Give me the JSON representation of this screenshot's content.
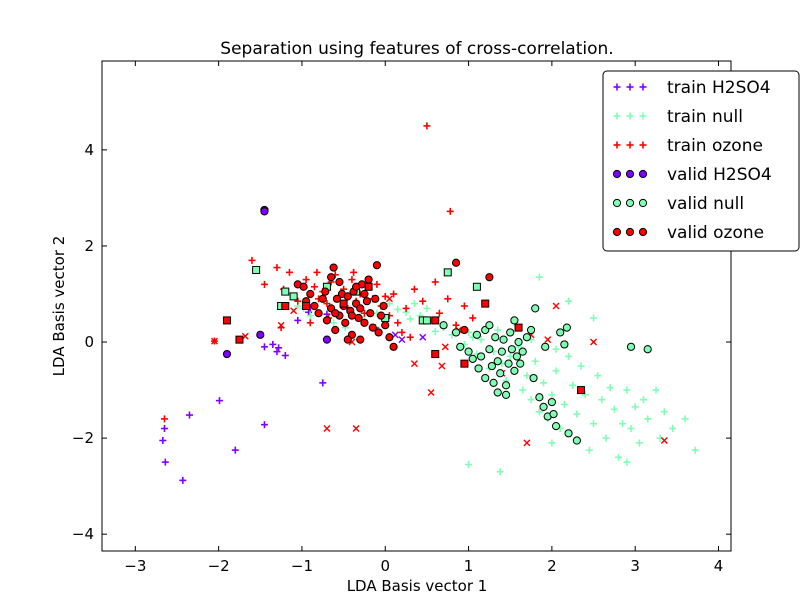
{
  "chart_data": {
    "type": "scatter",
    "title": "Separation using features of cross-correlation.",
    "xlabel": "LDA Basis vector 1",
    "ylabel": "LDA Basis vector 2",
    "xlim": [
      -3.4,
      4.15
    ],
    "ylim": [
      -4.35,
      5.85
    ],
    "xticks": [
      -3,
      -2,
      -1,
      0,
      1,
      2,
      3,
      4
    ],
    "xtick_labels": [
      "−3",
      "−2",
      "−1",
      "0",
      "1",
      "2",
      "3",
      "4"
    ],
    "yticks": [
      -4,
      -2,
      0,
      2,
      4
    ],
    "ytick_labels": [
      "−4",
      "−2",
      "0",
      "2",
      "4"
    ],
    "grid": false,
    "legend_position": "top-right",
    "legend": [
      "train H2SO4",
      "train null",
      "train ozone",
      "valid H2SO4",
      "valid null",
      "valid ozone"
    ],
    "series": [
      {
        "name": "train H2SO4",
        "marker": "+",
        "color": "#8000ff",
        "points": [
          [
            -2.65,
            -1.8
          ],
          [
            -2.67,
            -2.05
          ],
          [
            -2.64,
            -2.5
          ],
          [
            -2.43,
            -2.88
          ],
          [
            -2.35,
            -1.52
          ],
          [
            -1.99,
            -1.22
          ],
          [
            -1.8,
            -2.25
          ],
          [
            -1.45,
            -1.72
          ],
          [
            -1.2,
            -0.28
          ],
          [
            -1.3,
            -0.2
          ],
          [
            -1.28,
            -0.12
          ],
          [
            -1.35,
            -0.05
          ],
          [
            -1.45,
            -0.1
          ],
          [
            -0.75,
            -0.85
          ],
          [
            -1.05,
            0.45
          ],
          [
            -0.9,
            0.72
          ],
          [
            -0.92,
            0.62
          ],
          [
            -0.7,
            0.58
          ]
        ]
      },
      {
        "name": "train null",
        "marker": "+",
        "color": "#80ffb4",
        "points": [
          [
            -1.05,
            0.75
          ],
          [
            -0.98,
            0.7
          ],
          [
            -0.9,
            0.55
          ],
          [
            -0.62,
            0.4
          ],
          [
            -0.48,
            0.3
          ],
          [
            -0.3,
            0.52
          ],
          [
            -0.25,
            0.45
          ],
          [
            -0.1,
            0.6
          ],
          [
            0.05,
            0.8
          ],
          [
            0.15,
            0.68
          ],
          [
            0.25,
            0.62
          ],
          [
            0.3,
            0.48
          ],
          [
            0.42,
            0.55
          ],
          [
            0.55,
            0.45
          ],
          [
            0.6,
            0.22
          ],
          [
            0.7,
            0.3
          ],
          [
            0.8,
            0.15
          ],
          [
            0.85,
            0.35
          ],
          [
            0.95,
            -0.05
          ],
          [
            1.0,
            0.2
          ],
          [
            1.05,
            0.1
          ],
          [
            1.1,
            -0.25
          ],
          [
            1.15,
            0.05
          ],
          [
            1.25,
            -0.55
          ],
          [
            1.3,
            -0.2
          ],
          [
            1.35,
            0.25
          ],
          [
            1.4,
            -0.45
          ],
          [
            1.45,
            -0.8
          ],
          [
            1.5,
            -0.3
          ],
          [
            1.55,
            -0.6
          ],
          [
            1.6,
            -0.1
          ],
          [
            1.65,
            -1.0
          ],
          [
            1.7,
            -0.7
          ],
          [
            1.75,
            -1.2
          ],
          [
            1.8,
            -0.4
          ],
          [
            1.85,
            -1.45
          ],
          [
            1.9,
            -0.85
          ],
          [
            1.95,
            -1.6
          ],
          [
            2.0,
            -1.1
          ],
          [
            2.05,
            -0.6
          ],
          [
            2.1,
            -1.8
          ],
          [
            2.15,
            -1.3
          ],
          [
            2.2,
            -0.3
          ],
          [
            2.25,
            -0.9
          ],
          [
            2.3,
            -1.5
          ],
          [
            2.35,
            -0.5
          ],
          [
            2.4,
            -1.1
          ],
          [
            2.45,
            -2.25
          ],
          [
            2.5,
            -1.7
          ],
          [
            2.55,
            -0.7
          ],
          [
            2.6,
            -1.2
          ],
          [
            2.65,
            -2.0
          ],
          [
            2.7,
            -0.95
          ],
          [
            2.75,
            -1.4
          ],
          [
            2.8,
            -2.4
          ],
          [
            2.85,
            -1.7
          ],
          [
            2.9,
            -1.0
          ],
          [
            2.95,
            -1.8
          ],
          [
            3.0,
            -1.35
          ],
          [
            3.05,
            -2.1
          ],
          [
            3.1,
            -1.2
          ],
          [
            3.15,
            -1.6
          ],
          [
            3.25,
            -1.0
          ],
          [
            3.3,
            -2.0
          ],
          [
            3.35,
            -1.45
          ],
          [
            3.45,
            -1.8
          ],
          [
            3.6,
            -1.6
          ],
          [
            3.72,
            -2.25
          ],
          [
            1.0,
            -2.55
          ],
          [
            1.38,
            -2.7
          ],
          [
            1.85,
            1.35
          ],
          [
            2.2,
            0.85
          ],
          [
            2.5,
            0.5
          ],
          [
            2.9,
            -2.5
          ],
          [
            2.0,
            -2.1
          ],
          [
            1.55,
            0.4
          ],
          [
            1.75,
            0.05
          ],
          [
            2.05,
            -0.15
          ],
          [
            0.5,
            0.7
          ],
          [
            0.35,
            0.8
          ]
        ]
      },
      {
        "name": "train ozone",
        "marker": "+",
        "color": "#ff0000",
        "points": [
          [
            -2.65,
            -1.6
          ],
          [
            -2.05,
            0.02
          ],
          [
            -1.6,
            1.7
          ],
          [
            -1.45,
            1.2
          ],
          [
            -1.3,
            1.55
          ],
          [
            -1.15,
            1.45
          ],
          [
            -1.22,
            1.1
          ],
          [
            -1.1,
            0.95
          ],
          [
            -1.05,
            0.85
          ],
          [
            -0.95,
            1.3
          ],
          [
            -0.85,
            1.15
          ],
          [
            -0.8,
            0.9
          ],
          [
            -0.75,
            1.05
          ],
          [
            -0.7,
            0.8
          ],
          [
            -0.65,
            1.25
          ],
          [
            -0.6,
            1.4
          ],
          [
            -0.55,
            0.95
          ],
          [
            -0.5,
            1.1
          ],
          [
            -0.45,
            0.7
          ],
          [
            -0.4,
            1.3
          ],
          [
            -0.35,
            0.85
          ],
          [
            -0.3,
            1.0
          ],
          [
            -0.25,
            0.6
          ],
          [
            -0.2,
            1.15
          ],
          [
            -0.15,
            0.9
          ],
          [
            -0.1,
            1.2
          ],
          [
            -0.05,
            0.75
          ],
          [
            0.0,
            0.95
          ],
          [
            0.05,
            0.55
          ],
          [
            0.1,
            1.0
          ],
          [
            0.15,
            0.4
          ],
          [
            0.2,
            0.2
          ],
          [
            0.3,
            0.1
          ],
          [
            0.35,
            1.1
          ],
          [
            0.45,
            0.85
          ],
          [
            0.5,
            4.5
          ],
          [
            0.78,
            2.72
          ],
          [
            0.6,
            1.25
          ],
          [
            0.65,
            0.6
          ],
          [
            0.75,
            0.9
          ],
          [
            0.85,
            0.35
          ],
          [
            0.95,
            0.75
          ],
          [
            1.05,
            0.5
          ],
          [
            -0.82,
            1.45
          ],
          [
            -0.68,
            0.5
          ],
          [
            -1.25,
            0.3
          ],
          [
            -0.9,
            0.4
          ],
          [
            -0.38,
            1.45
          ],
          [
            0.25,
            0.7
          ],
          [
            -0.12,
            0.3
          ]
        ]
      },
      {
        "name": "train ozone x",
        "marker": "x",
        "color": "#ff0000",
        "points": [
          [
            -2.05,
            0.02
          ],
          [
            -1.68,
            0.12
          ],
          [
            -1.25,
            0.35
          ],
          [
            -0.7,
            -1.8
          ],
          [
            -0.35,
            -1.8
          ],
          [
            0.35,
            -0.45
          ],
          [
            0.55,
            -1.05
          ],
          [
            0.68,
            -0.5
          ],
          [
            1.7,
            -2.1
          ],
          [
            1.75,
            0.15
          ],
          [
            1.95,
            0.05
          ],
          [
            2.05,
            0.75
          ],
          [
            2.5,
            0.0
          ],
          [
            3.35,
            -2.05
          ],
          [
            0.72,
            -0.1
          ],
          [
            -0.4,
            0.0
          ],
          [
            -1.1,
            0.65
          ],
          [
            0.88,
            0.25
          ],
          [
            1.4,
            -0.65
          ],
          [
            0.05,
            0.9
          ]
        ]
      },
      {
        "name": "train H2SO4 x",
        "marker": "x",
        "color": "#8000ff",
        "points": [
          [
            0.2,
            0.05
          ],
          [
            0.12,
            0.15
          ],
          [
            0.45,
            0.1
          ]
        ]
      },
      {
        "name": "valid H2SO4",
        "marker": "o",
        "color": "#7f00ff",
        "points": [
          [
            -1.45,
            2.75
          ],
          [
            -1.45,
            2.72
          ],
          [
            -1.9,
            -0.25
          ],
          [
            -1.5,
            0.15
          ],
          [
            -0.7,
            0.05
          ]
        ]
      },
      {
        "name": "valid null",
        "marker": "o",
        "color": "#80ffb4",
        "points": [
          [
            0.7,
            0.35
          ],
          [
            0.85,
            0.2
          ],
          [
            0.9,
            -0.1
          ],
          [
            1.0,
            -0.2
          ],
          [
            1.05,
            -0.35
          ],
          [
            1.1,
            0.15
          ],
          [
            1.12,
            -0.55
          ],
          [
            1.15,
            -0.3
          ],
          [
            1.2,
            -0.75
          ],
          [
            1.2,
            0.25
          ],
          [
            1.25,
            -0.15
          ],
          [
            1.28,
            -0.5
          ],
          [
            1.3,
            -0.85
          ],
          [
            1.32,
            0.1
          ],
          [
            1.35,
            -0.4
          ],
          [
            1.35,
            -1.05
          ],
          [
            1.38,
            -0.65
          ],
          [
            1.4,
            -0.2
          ],
          [
            1.42,
            0.05
          ],
          [
            1.45,
            -0.9
          ],
          [
            1.45,
            -1.1
          ],
          [
            1.48,
            -0.45
          ],
          [
            1.5,
            0.2
          ],
          [
            1.52,
            -0.15
          ],
          [
            1.55,
            -0.6
          ],
          [
            1.58,
            -0.3
          ],
          [
            1.6,
            0.0
          ],
          [
            1.62,
            -0.45
          ],
          [
            1.65,
            -0.2
          ],
          [
            1.7,
            0.1
          ],
          [
            1.75,
            0.25
          ],
          [
            1.78,
            -0.75
          ],
          [
            1.8,
            0.7
          ],
          [
            1.85,
            -1.15
          ],
          [
            1.9,
            -1.35
          ],
          [
            1.95,
            -1.55
          ],
          [
            2.0,
            -1.25
          ],
          [
            2.02,
            -1.5
          ],
          [
            2.05,
            -1.75
          ],
          [
            2.1,
            0.2
          ],
          [
            2.15,
            -0.05
          ],
          [
            2.18,
            0.3
          ],
          [
            2.2,
            -1.9
          ],
          [
            2.3,
            -2.05
          ],
          [
            2.95,
            -0.1
          ],
          [
            3.15,
            -0.15
          ],
          [
            1.92,
            -0.1
          ],
          [
            1.25,
            0.35
          ],
          [
            1.55,
            0.45
          ]
        ]
      },
      {
        "name": "valid null sq",
        "marker": "s",
        "color": "#80ffb4",
        "points": [
          [
            -1.55,
            1.5
          ],
          [
            -1.2,
            1.05
          ],
          [
            -1.1,
            0.95
          ],
          [
            -0.7,
            1.15
          ],
          [
            -0.35,
            1.05
          ],
          [
            0.45,
            0.45
          ],
          [
            0.5,
            0.45
          ],
          [
            0.75,
            1.45
          ],
          [
            1.1,
            1.15
          ],
          [
            -1.25,
            0.75
          ],
          [
            0.0,
            0.5
          ]
        ]
      },
      {
        "name": "valid ozone",
        "marker": "o",
        "color": "#ff0000",
        "points": [
          [
            -1.05,
            1.2
          ],
          [
            -0.98,
            1.15
          ],
          [
            -0.95,
            0.85
          ],
          [
            -0.9,
            1.0
          ],
          [
            -0.85,
            0.75
          ],
          [
            -0.8,
            0.6
          ],
          [
            -0.75,
            0.9
          ],
          [
            -0.72,
            1.05
          ],
          [
            -0.7,
            0.45
          ],
          [
            -0.65,
            0.7
          ],
          [
            -0.62,
            1.55
          ],
          [
            -0.6,
            0.25
          ],
          [
            -0.58,
            0.9
          ],
          [
            -0.55,
            0.55
          ],
          [
            -0.52,
            1.0
          ],
          [
            -0.5,
            0.75
          ],
          [
            -0.48,
            0.4
          ],
          [
            -0.45,
            0.95
          ],
          [
            -0.42,
            0.65
          ],
          [
            -0.4,
            0.15
          ],
          [
            -0.38,
            1.05
          ],
          [
            -0.35,
            0.8
          ],
          [
            -0.32,
            0.5
          ],
          [
            -0.3,
            0.7
          ],
          [
            -0.28,
            1.2
          ],
          [
            -0.25,
            0.4
          ],
          [
            -0.22,
            0.85
          ],
          [
            -0.2,
            1.3
          ],
          [
            -0.18,
            0.6
          ],
          [
            -0.15,
            0.3
          ],
          [
            -0.12,
            0.9
          ],
          [
            -0.1,
            1.6
          ],
          [
            -0.08,
            0.2
          ],
          [
            -0.05,
            0.55
          ],
          [
            -0.02,
            0.75
          ],
          [
            0.0,
            0.35
          ],
          [
            0.05,
            0.1
          ],
          [
            0.1,
            -0.1
          ],
          [
            -0.3,
            0.05
          ],
          [
            -0.45,
            0.05
          ],
          [
            -0.55,
            1.25
          ],
          [
            -0.65,
            1.35
          ],
          [
            -0.35,
            1.15
          ],
          [
            -0.25,
            1.0
          ],
          [
            0.85,
            1.65
          ],
          [
            1.25,
            1.35
          ],
          [
            0.95,
            0.25
          ],
          [
            -0.4,
            0.55
          ],
          [
            -0.6,
            0.6
          ]
        ]
      },
      {
        "name": "valid ozone sq",
        "marker": "s",
        "color": "#ff0000",
        "points": [
          [
            -1.9,
            0.45
          ],
          [
            -1.75,
            0.05
          ],
          [
            -1.2,
            0.75
          ],
          [
            -0.95,
            0.75
          ],
          [
            -0.5,
            0.8
          ],
          [
            0.6,
            -0.25
          ],
          [
            0.95,
            -0.45
          ],
          [
            1.2,
            0.8
          ],
          [
            1.6,
            0.3
          ],
          [
            2.35,
            -1.0
          ],
          [
            -0.2,
            1.15
          ],
          [
            0.6,
            0.45
          ]
        ]
      }
    ]
  }
}
